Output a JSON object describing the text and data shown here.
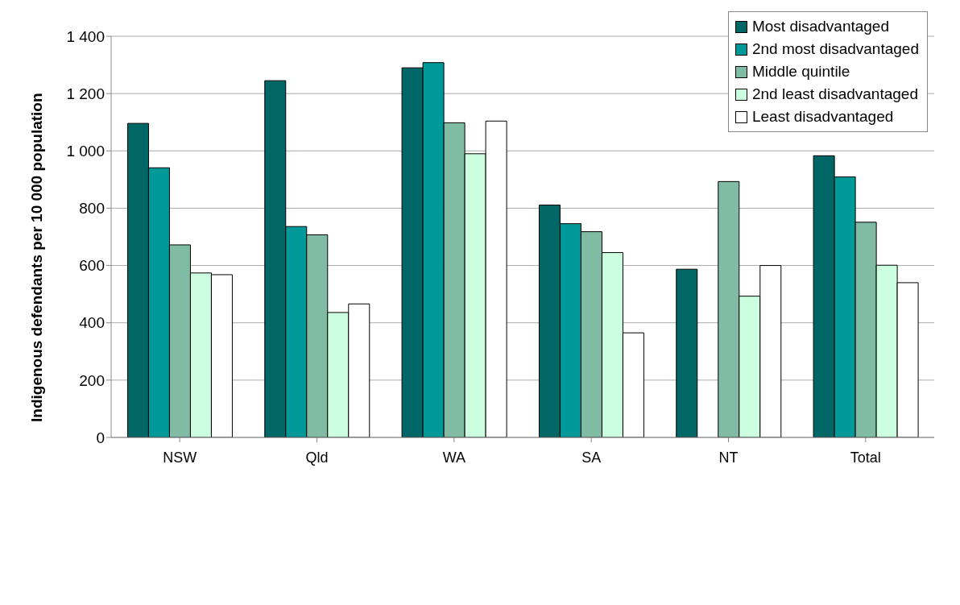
{
  "chart_data": {
    "type": "bar",
    "ylabel": "Indigenous defendants per 10 000 population",
    "categories": [
      "NSW",
      "Qld",
      "WA",
      "SA",
      "NT",
      "Total"
    ],
    "series": [
      {
        "name": "Most disadvantaged",
        "color": "#006666",
        "values": [
          1096,
          1245,
          1290,
          811,
          587,
          983
        ]
      },
      {
        "name": "2nd most disadvantaged",
        "color": "#009999",
        "values": [
          941,
          736,
          1308,
          746,
          null,
          909
        ]
      },
      {
        "name": "Middle quintile",
        "color": "#80bba6",
        "values": [
          672,
          707,
          1098,
          718,
          893,
          751
        ]
      },
      {
        "name": "2nd least disadvantaged",
        "color": "#ccffe0",
        "values": [
          574,
          436,
          990,
          645,
          493,
          601
        ]
      },
      {
        "name": "Least disadvantaged",
        "color": "#ffffff",
        "values": [
          568,
          466,
          1104,
          365,
          600,
          540
        ]
      }
    ],
    "ylim": [
      0,
      1400
    ],
    "yticks": [
      0,
      200,
      400,
      600,
      800,
      {
        "value": 1000,
        "label": "1 000"
      },
      {
        "value": 1200,
        "label": "1 200"
      },
      {
        "value": 1400,
        "label": "1 400"
      }
    ],
    "grid": "y",
    "legend": "top right"
  }
}
